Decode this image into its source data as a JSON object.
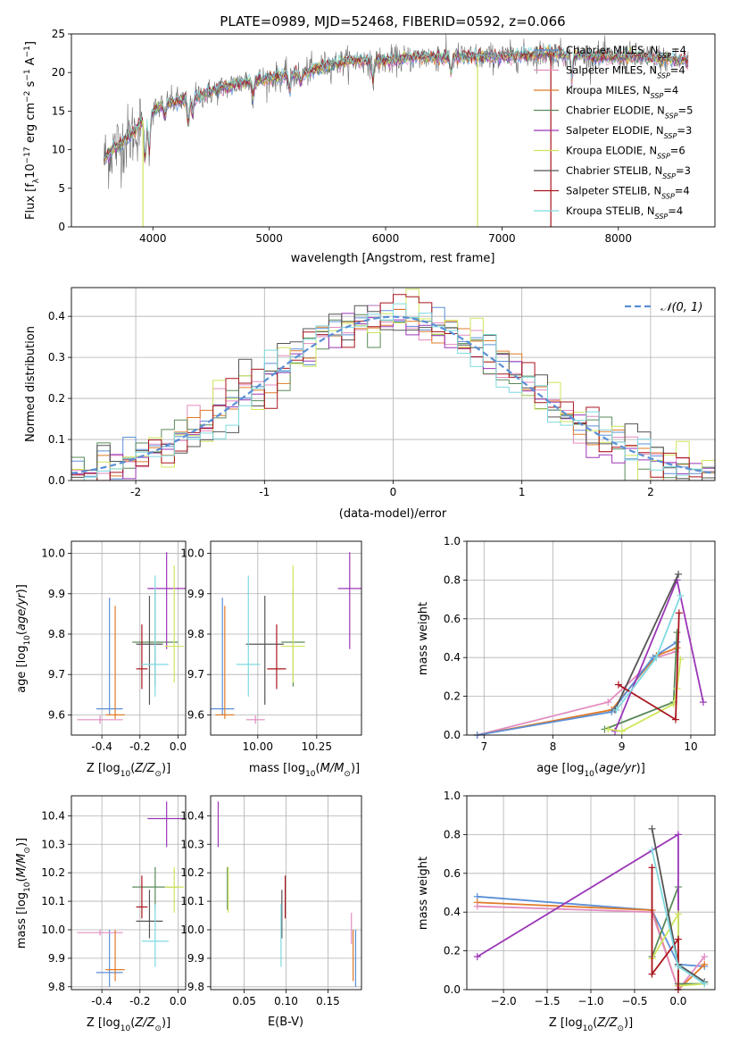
{
  "chart_data": [
    {
      "id": "spectrum",
      "type": "line",
      "title": "PLATE=0989, MJD=52468, FIBERID=0592, z=0.066",
      "xlabel": "wavelength [Angstrom, rest frame]",
      "ylabel": "Flux [f_λ10^-17 erg cm^-2 s^-1 A^-1]",
      "xlim": [
        3300,
        8830
      ],
      "ylim": [
        0,
        25
      ],
      "xticks": [
        4000,
        5000,
        6000,
        7000,
        8000
      ],
      "yticks": [
        0,
        5,
        10,
        15,
        20,
        25
      ],
      "grid": false,
      "legend_position": "top-right",
      "series": [
        {
          "name": "Chabrier MILES, N_SSP=4",
          "color": "#5b8fd6"
        },
        {
          "name": "Salpeter MILES, N_SSP=4",
          "color": "#e28bc0"
        },
        {
          "name": "Kroupa MILES, N_SSP=4",
          "color": "#e07b28"
        },
        {
          "name": "Chabrier ELODIE, N_SSP=5",
          "color": "#5a8a5a"
        },
        {
          "name": "Salpeter ELODIE, N_SSP=3",
          "color": "#9b36b7"
        },
        {
          "name": "Kroupa ELODIE, N_SSP=6",
          "color": "#cfe65a"
        },
        {
          "name": "Chabrier STELIB, N_SSP=3",
          "color": "#555555"
        },
        {
          "name": "Salpeter STELIB, N_SSP=4",
          "color": "#a8151d"
        },
        {
          "name": "Kroupa STELIB, N_SSP=4",
          "color": "#7fd9e0"
        }
      ],
      "continuum_points": [
        [
          3570,
          8.5
        ],
        [
          3650,
          10
        ],
        [
          3750,
          11
        ],
        [
          3850,
          12.5
        ],
        [
          3950,
          14.5
        ],
        [
          4100,
          16
        ],
        [
          4300,
          16.5
        ],
        [
          4500,
          17.5
        ],
        [
          4700,
          18.5
        ],
        [
          4900,
          19
        ],
        [
          5100,
          19.5
        ],
        [
          5300,
          20
        ],
        [
          5500,
          21
        ],
        [
          5700,
          21.5
        ],
        [
          6000,
          21.5
        ],
        [
          6300,
          22
        ],
        [
          6600,
          22
        ],
        [
          7000,
          22
        ],
        [
          7400,
          22.5
        ],
        [
          7800,
          22
        ],
        [
          8200,
          22
        ],
        [
          8600,
          21.5
        ]
      ]
    },
    {
      "id": "residuals",
      "type": "line",
      "xlabel": "(data-model)/error",
      "ylabel": "Normed distribution",
      "xlim": [
        -2.5,
        2.5
      ],
      "ylim": [
        0,
        0.47
      ],
      "xticks": [
        -2,
        -1,
        0,
        1,
        2
      ],
      "yticks": [
        0.0,
        0.1,
        0.2,
        0.3,
        0.4
      ],
      "grid": true,
      "legend_position": "top-right",
      "gaussian_label": "𝒩(0, 1)",
      "gaussian_color": "#5b8fd6"
    },
    {
      "id": "age-vs-Z",
      "type": "scatter",
      "xlabel": "Z [log10(Z/Z⊙)]",
      "ylabel": "age [log10(age/yr)]",
      "xlim": [
        -0.56,
        0.04
      ],
      "ylim": [
        9.55,
        10.03
      ],
      "xticks": [
        -0.4,
        -0.2,
        0.0
      ],
      "yticks": [
        9.6,
        9.7,
        9.8,
        9.9,
        10.0
      ],
      "points": [
        {
          "x": -0.36,
          "y": 9.615,
          "xerr": 0.07,
          "yerr": [
            0.015,
            0.275
          ],
          "color": "#5b8fd6"
        },
        {
          "x": -0.41,
          "y": 9.588,
          "xerr": 0.12,
          "yerr": [
            0.01,
            0.01
          ],
          "color": "#e28bc0"
        },
        {
          "x": -0.33,
          "y": 9.6,
          "xerr": 0.05,
          "yerr": [
            0.01,
            0.27
          ],
          "color": "#e07b28"
        },
        {
          "x": -0.12,
          "y": 9.78,
          "xerr": 0.12,
          "yerr": [
            0.11,
            0.13
          ],
          "color": "#5a8a5a"
        },
        {
          "x": -0.06,
          "y": 9.913,
          "xerr": 0.1,
          "yerr": [
            0.15,
            0.09
          ],
          "color": "#9b36b7"
        },
        {
          "x": -0.02,
          "y": 9.77,
          "xerr": 0.05,
          "yerr": [
            0.09,
            0.2
          ],
          "color": "#cfe65a"
        },
        {
          "x": -0.15,
          "y": 9.775,
          "xerr": 0.07,
          "yerr": [
            0.15,
            0.12
          ],
          "color": "#555555"
        },
        {
          "x": -0.19,
          "y": 9.714,
          "xerr": 0.03,
          "yerr": [
            0.05,
            0.11
          ],
          "color": "#a8151d"
        },
        {
          "x": -0.12,
          "y": 9.725,
          "xerr": 0.07,
          "yerr": [
            0.08,
            0.22
          ],
          "color": "#7fd9e0"
        }
      ]
    },
    {
      "id": "age-vs-mass",
      "type": "scatter",
      "xlabel": "mass [log10(M/M⊙)]",
      "ylim": [
        9.55,
        10.03
      ],
      "xlim": [
        9.8,
        10.44
      ],
      "xticks": [
        10.0,
        10.25
      ],
      "yticks": [
        9.6,
        9.7,
        9.8,
        9.9,
        10.0
      ],
      "points": [
        {
          "x": 9.85,
          "y": 9.615,
          "xerr": 0.05,
          "yerr": [
            0.015,
            0.275
          ],
          "color": "#5b8fd6"
        },
        {
          "x": 9.99,
          "y": 9.588,
          "xerr": 0.04,
          "yerr": [
            0.01,
            0.01
          ],
          "color": "#e28bc0"
        },
        {
          "x": 9.86,
          "y": 9.6,
          "xerr": 0.04,
          "yerr": [
            0.01,
            0.27
          ],
          "color": "#e07b28"
        },
        {
          "x": 10.15,
          "y": 9.78,
          "xerr": 0.05,
          "yerr": [
            0.11,
            0.13
          ],
          "color": "#5a8a5a"
        },
        {
          "x": 10.39,
          "y": 9.913,
          "xerr": 0.05,
          "yerr": [
            0.15,
            0.09
          ],
          "color": "#9b36b7"
        },
        {
          "x": 10.15,
          "y": 9.77,
          "xerr": 0.05,
          "yerr": [
            0.09,
            0.2
          ],
          "color": "#cfe65a"
        },
        {
          "x": 10.03,
          "y": 9.775,
          "xerr": 0.08,
          "yerr": [
            0.15,
            0.12
          ],
          "color": "#555555"
        },
        {
          "x": 10.08,
          "y": 9.714,
          "xerr": 0.04,
          "yerr": [
            0.05,
            0.11
          ],
          "color": "#a8151d"
        },
        {
          "x": 9.96,
          "y": 9.725,
          "xerr": 0.05,
          "yerr": [
            0.08,
            0.22
          ],
          "color": "#7fd9e0"
        }
      ]
    },
    {
      "id": "massweight-vs-age",
      "type": "line",
      "xlabel": "age [log10(age/yr)]",
      "ylabel": "mass weight",
      "xlim": [
        6.75,
        10.35
      ],
      "ylim": [
        0,
        1.0
      ],
      "xticks": [
        7,
        8,
        9,
        10
      ],
      "yticks": [
        0.0,
        0.2,
        0.4,
        0.6,
        0.8,
        1.0
      ],
      "grid": true,
      "series": [
        {
          "color": "#e28bc0",
          "x": [
            6.9,
            8.8,
            9.5,
            9.78
          ],
          "y": [
            0.0,
            0.17,
            0.4,
            0.43
          ]
        },
        {
          "color": "#e07b28",
          "x": [
            6.9,
            8.85,
            9.5,
            9.8
          ],
          "y": [
            0.0,
            0.13,
            0.41,
            0.45
          ]
        },
        {
          "color": "#5b8fd6",
          "x": [
            6.9,
            8.85,
            9.45,
            9.8
          ],
          "y": [
            0.0,
            0.12,
            0.4,
            0.48
          ]
        },
        {
          "color": "#5a8a5a",
          "x": [
            8.75,
            9.75,
            9.8
          ],
          "y": [
            0.03,
            0.17,
            0.53
          ]
        },
        {
          "color": "#9b36b7",
          "x": [
            8.9,
            9.8,
            10.18
          ],
          "y": [
            0.02,
            0.8,
            0.17
          ]
        },
        {
          "color": "#cfe65a",
          "x": [
            8.8,
            9.0,
            9.75,
            9.8,
            9.85
          ],
          "y": [
            0.03,
            0.02,
            0.16,
            0.24,
            0.39
          ]
        },
        {
          "color": "#555555",
          "x": [
            8.9,
            9.82
          ],
          "y": [
            0.13,
            0.83
          ]
        },
        {
          "color": "#a8151d",
          "x": [
            8.95,
            9.78,
            9.83
          ],
          "y": [
            0.26,
            0.08,
            0.63
          ]
        },
        {
          "color": "#7fd9e0",
          "x": [
            8.92,
            9.5,
            9.85
          ],
          "y": [
            0.13,
            0.4,
            0.72
          ]
        }
      ]
    },
    {
      "id": "mass-vs-Z",
      "type": "scatter",
      "xlabel": "Z [log10(Z/Z⊙)]",
      "ylabel": "mass [log10(M/M⊙)]",
      "xlim": [
        -0.56,
        0.04
      ],
      "ylim": [
        9.79,
        10.47
      ],
      "xticks": [
        -0.4,
        -0.2,
        0.0
      ],
      "yticks": [
        9.8,
        9.9,
        10.0,
        10.1,
        10.2,
        10.3,
        10.4
      ],
      "points": [
        {
          "x": -0.36,
          "y": 9.85,
          "xerr": 0.07,
          "yerr": [
            0.05,
            0.15
          ],
          "color": "#5b8fd6"
        },
        {
          "x": -0.41,
          "y": 9.99,
          "xerr": 0.12,
          "yerr": [
            0.01,
            0.01
          ],
          "color": "#e28bc0"
        },
        {
          "x": -0.33,
          "y": 9.86,
          "xerr": 0.05,
          "yerr": [
            0.04,
            0.14
          ],
          "color": "#e07b28"
        },
        {
          "x": -0.12,
          "y": 10.15,
          "xerr": 0.12,
          "yerr": [
            0.08,
            0.07
          ],
          "color": "#5a8a5a"
        },
        {
          "x": -0.06,
          "y": 10.39,
          "xerr": 0.1,
          "yerr": [
            0.1,
            0.06
          ],
          "color": "#9b36b7"
        },
        {
          "x": -0.02,
          "y": 10.15,
          "xerr": 0.05,
          "yerr": [
            0.09,
            0.07
          ],
          "color": "#cfe65a"
        },
        {
          "x": -0.15,
          "y": 10.03,
          "xerr": 0.07,
          "yerr": [
            0.06,
            0.11
          ],
          "color": "#555555"
        },
        {
          "x": -0.19,
          "y": 10.08,
          "xerr": 0.03,
          "yerr": [
            0.04,
            0.11
          ],
          "color": "#a8151d"
        },
        {
          "x": -0.12,
          "y": 9.96,
          "xerr": 0.07,
          "yerr": [
            0.09,
            0.13
          ],
          "color": "#7fd9e0"
        }
      ]
    },
    {
      "id": "mass-vs-ebv",
      "type": "scatter",
      "xlabel": "E(B-V)",
      "xlim": [
        0.01,
        0.19
      ],
      "ylim": [
        9.79,
        10.47
      ],
      "xticks": [
        0.05,
        0.1,
        0.15
      ],
      "yticks": [
        9.8,
        9.9,
        10.0,
        10.1,
        10.2,
        10.3,
        10.4
      ],
      "points": [
        {
          "x": 0.183,
          "y": 9.85,
          "yerr": [
            0.05,
            0.15
          ],
          "color": "#5b8fd6"
        },
        {
          "x": 0.178,
          "y": 9.99,
          "yerr": [
            0.04,
            0.07
          ],
          "color": "#e28bc0"
        },
        {
          "x": 0.18,
          "y": 9.86,
          "yerr": [
            0.04,
            0.14
          ],
          "color": "#e07b28"
        },
        {
          "x": 0.03,
          "y": 10.15,
          "yerr": [
            0.08,
            0.07
          ],
          "color": "#5a8a5a"
        },
        {
          "x": 0.019,
          "y": 10.39,
          "yerr": [
            0.1,
            0.06
          ],
          "color": "#9b36b7"
        },
        {
          "x": 0.031,
          "y": 10.15,
          "yerr": [
            0.09,
            0.07
          ],
          "color": "#cfe65a"
        },
        {
          "x": 0.095,
          "y": 10.03,
          "yerr": [
            0.06,
            0.11
          ],
          "color": "#555555"
        },
        {
          "x": 0.099,
          "y": 10.08,
          "yerr": [
            0.04,
            0.11
          ],
          "color": "#a8151d"
        },
        {
          "x": 0.094,
          "y": 9.96,
          "yerr": [
            0.09,
            0.13
          ],
          "color": "#7fd9e0"
        }
      ]
    },
    {
      "id": "massweight-vs-Z",
      "type": "line",
      "xlabel": "Z [log10(Z/Z⊙)]",
      "ylabel": "mass weight",
      "xlim": [
        -2.42,
        0.42
      ],
      "ylim": [
        0,
        1.0
      ],
      "xticks": [
        -2.0,
        -1.5,
        -1.0,
        -0.5,
        0.0
      ],
      "yticks": [
        0.0,
        0.2,
        0.4,
        0.6,
        0.8,
        1.0
      ],
      "grid": true,
      "series": [
        {
          "color": "#5b8fd6",
          "x": [
            -2.3,
            -0.3,
            0.0,
            0.3
          ],
          "y": [
            0.48,
            0.41,
            0.13,
            0.12
          ]
        },
        {
          "color": "#e07b28",
          "x": [
            -2.3,
            -0.3,
            0.0,
            0.3
          ],
          "y": [
            0.45,
            0.41,
            0.0,
            0.13
          ]
        },
        {
          "color": "#e28bc0",
          "x": [
            -2.3,
            -0.3,
            0.0,
            0.3
          ],
          "y": [
            0.43,
            0.4,
            0.0,
            0.17
          ]
        },
        {
          "color": "#5a8a5a",
          "x": [
            -0.3,
            0.0,
            0.0,
            0.3
          ],
          "y": [
            0.17,
            0.53,
            0.03,
            0.03
          ]
        },
        {
          "color": "#9b36b7",
          "x": [
            -2.3,
            0.0,
            0.0
          ],
          "y": [
            0.17,
            0.8,
            0.02
          ]
        },
        {
          "color": "#cfe65a",
          "x": [
            -0.3,
            0.0,
            0.0,
            0.3
          ],
          "y": [
            0.16,
            0.39,
            0.02,
            0.03
          ]
        },
        {
          "color": "#555555",
          "x": [
            -0.3,
            0.0,
            0.3
          ],
          "y": [
            0.83,
            0.13,
            0.04
          ]
        },
        {
          "color": "#a8151d",
          "x": [
            -0.3,
            -0.3,
            0.0,
            0.0
          ],
          "y": [
            0.63,
            0.08,
            0.26,
            0.0
          ]
        },
        {
          "color": "#7fd9e0",
          "x": [
            -0.3,
            0.0,
            0.3
          ],
          "y": [
            0.72,
            0.12,
            0.03
          ]
        }
      ]
    }
  ]
}
